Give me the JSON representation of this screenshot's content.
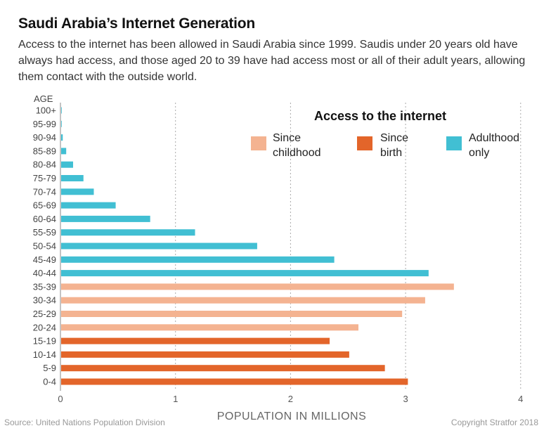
{
  "header": {
    "title": "Saudi Arabia’s Internet Generation",
    "subtitle": "Access to the internet has been allowed in Saudi Arabia since 1999. Saudis under 20 years old have always had access, and those aged 20 to 39 have had access most or all of their adult years, allowing them contact with the outside world."
  },
  "footer": {
    "source": "Source: United Nations Population Division",
    "copyright": "Copyright Stratfor 2018"
  },
  "colors": {
    "since_childhood": "#f4b391",
    "since_birth": "#e3652a",
    "adulthood_only": "#41bfd3"
  },
  "chart_data": {
    "type": "bar",
    "orientation": "horizontal",
    "title": "Access to the internet",
    "ylabel": "AGE",
    "xlabel": "POPULATION IN  MILLIONS",
    "xlim": [
      0,
      4
    ],
    "xticks": [
      "0",
      "1",
      "2",
      "3",
      "4"
    ],
    "grid": true,
    "legend_position": "top-right",
    "legend": [
      {
        "key": "since_childhood",
        "label_line1": "Since",
        "label_line2": "childhood"
      },
      {
        "key": "since_birth",
        "label_line1": "Since",
        "label_line2": "birth"
      },
      {
        "key": "adulthood_only",
        "label_line1": "Adulthood",
        "label_line2": "only"
      }
    ],
    "categories": [
      "100+",
      "95-99",
      "90-94",
      "85-89",
      "80-84",
      "75-79",
      "70-74",
      "65-69",
      "60-64",
      "55-59",
      "50-54",
      "45-49",
      "40-44",
      "35-39",
      "30-34",
      "25-29",
      "20-24",
      "15-19",
      "10-14",
      "5-9",
      "0-4"
    ],
    "values": [
      0.01,
      0.01,
      0.02,
      0.05,
      0.11,
      0.2,
      0.29,
      0.48,
      0.78,
      1.17,
      1.71,
      2.38,
      3.2,
      3.42,
      3.17,
      2.97,
      2.59,
      2.34,
      2.51,
      2.82,
      3.02
    ],
    "groups": [
      "adulthood_only",
      "adulthood_only",
      "adulthood_only",
      "adulthood_only",
      "adulthood_only",
      "adulthood_only",
      "adulthood_only",
      "adulthood_only",
      "adulthood_only",
      "adulthood_only",
      "adulthood_only",
      "adulthood_only",
      "adulthood_only",
      "since_childhood",
      "since_childhood",
      "since_childhood",
      "since_childhood",
      "since_birth",
      "since_birth",
      "since_birth",
      "since_birth"
    ]
  }
}
